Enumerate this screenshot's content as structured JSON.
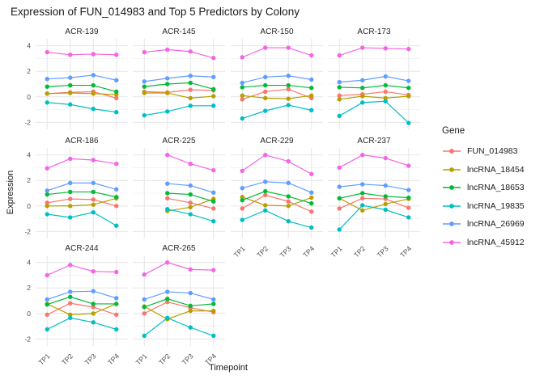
{
  "title": "Expression of FUN_014983 and Top 5 Predictors by Colony",
  "axes": {
    "x_title": "Timepoint",
    "y_title": "Expression"
  },
  "legend": {
    "title": "Gene",
    "items": [
      {
        "label": "FUN_014983",
        "color": "#F8766D"
      },
      {
        "label": "lncRNA_18454",
        "color": "#B79F00"
      },
      {
        "label": "lncRNA_18653",
        "color": "#00BA38"
      },
      {
        "label": "lncRNA_19835",
        "color": "#00BFC4"
      },
      {
        "label": "lncRNA_26969",
        "color": "#619CFF"
      },
      {
        "label": "lncRNA_45912",
        "color": "#F564E3"
      }
    ]
  },
  "chart_data": {
    "type": "line",
    "facet_by": "Colony",
    "x": [
      "TP1",
      "TP2",
      "TP3",
      "TP4"
    ],
    "xlabel": "Timepoint",
    "ylabel": "Expression",
    "ylim": [
      -2.55,
      4.55
    ],
    "y_major_ticks": [
      4,
      2,
      0,
      -2
    ],
    "y_minor_gridlines": [
      3,
      1,
      -1
    ],
    "grid": true,
    "legend_position": "right",
    "facets": [
      {
        "name": "ACR-139",
        "show_x_labels": false,
        "series": {
          "FUN_014983": [
            0.25,
            0.35,
            0.4,
            -0.1
          ],
          "lncRNA_18454": [
            0.25,
            0.3,
            0.25,
            0.17
          ],
          "lncRNA_18653": [
            0.8,
            0.9,
            0.9,
            0.4
          ],
          "lncRNA_19835": [
            -0.45,
            -0.6,
            -0.95,
            -1.2
          ],
          "lncRNA_26969": [
            1.4,
            1.5,
            1.7,
            1.3
          ],
          "lncRNA_45912": [
            3.5,
            3.3,
            3.35,
            3.3
          ]
        }
      },
      {
        "name": "ACR-145",
        "show_x_labels": false,
        "series": {
          "FUN_014983": [
            0.4,
            0.35,
            0.55,
            0.5
          ],
          "lncRNA_18454": [
            0.3,
            0.3,
            -0.1,
            0.05
          ],
          "lncRNA_18653": [
            0.8,
            1.0,
            1.1,
            0.6
          ],
          "lncRNA_19835": [
            -1.45,
            -1.15,
            -0.7,
            -0.7
          ],
          "lncRNA_26969": [
            1.2,
            1.45,
            1.65,
            1.55
          ],
          "lncRNA_45912": [
            3.5,
            3.7,
            3.55,
            3.05
          ]
        }
      },
      {
        "name": "ACR-150",
        "show_x_labels": false,
        "series": {
          "FUN_014983": [
            -0.2,
            0.4,
            0.6,
            -0.1
          ],
          "lncRNA_18454": [
            0.1,
            -0.1,
            -0.15,
            0.1
          ],
          "lncRNA_18653": [
            0.75,
            0.9,
            0.9,
            0.7
          ],
          "lncRNA_19835": [
            -1.7,
            -1.1,
            -0.65,
            -1.05
          ],
          "lncRNA_26969": [
            1.1,
            1.55,
            1.65,
            1.35
          ],
          "lncRNA_45912": [
            3.1,
            3.85,
            3.85,
            3.25
          ]
        }
      },
      {
        "name": "ACR-173",
        "show_x_labels": false,
        "series": {
          "FUN_014983": [
            0.1,
            0.2,
            0.4,
            0.15
          ],
          "lncRNA_18454": [
            -0.2,
            0.05,
            -0.1,
            0.05
          ],
          "lncRNA_18653": [
            0.75,
            0.7,
            0.9,
            0.7
          ],
          "lncRNA_19835": [
            -1.5,
            -0.45,
            -0.35,
            -2.05
          ],
          "lncRNA_26969": [
            1.15,
            1.3,
            1.6,
            1.25
          ],
          "lncRNA_45912": [
            3.25,
            3.85,
            3.8,
            3.75
          ]
        }
      },
      {
        "name": "ACR-186",
        "show_x_labels": false,
        "series": {
          "FUN_014983": [
            0.25,
            0.55,
            0.5,
            0.0
          ],
          "lncRNA_18454": [
            0.0,
            0.0,
            0.1,
            0.6
          ],
          "lncRNA_18653": [
            0.9,
            1.1,
            1.1,
            0.7
          ],
          "lncRNA_19835": [
            -0.65,
            -0.9,
            -0.5,
            -1.55
          ],
          "lncRNA_26969": [
            1.2,
            1.8,
            1.8,
            1.3
          ],
          "lncRNA_45912": [
            2.95,
            3.7,
            3.6,
            3.3
          ]
        }
      },
      {
        "name": "ACR-225",
        "show_x_labels": false,
        "series": {
          "FUN_014983": [
            null,
            0.6,
            0.25,
            -0.2
          ],
          "lncRNA_18454": [
            null,
            -0.4,
            -0.1,
            0.55
          ],
          "lncRNA_18653": [
            null,
            1.0,
            0.9,
            0.35
          ],
          "lncRNA_19835": [
            null,
            -0.25,
            -0.65,
            -1.2
          ],
          "lncRNA_26969": [
            null,
            1.75,
            1.6,
            1.05
          ],
          "lncRNA_45912": [
            null,
            4.0,
            3.3,
            2.8
          ]
        }
      },
      {
        "name": "ACR-229",
        "show_x_labels": true,
        "series": {
          "FUN_014983": [
            -0.2,
            0.85,
            0.35,
            -0.45
          ],
          "lncRNA_18454": [
            0.7,
            0.05,
            0.0,
            0.65
          ],
          "lncRNA_18653": [
            0.45,
            1.15,
            0.75,
            0.2
          ],
          "lncRNA_19835": [
            -1.1,
            -0.35,
            -1.2,
            -1.7
          ],
          "lncRNA_26969": [
            1.4,
            1.9,
            1.8,
            1.05
          ],
          "lncRNA_45912": [
            2.75,
            4.0,
            3.5,
            2.5
          ]
        }
      },
      {
        "name": "ACR-237",
        "show_x_labels": true,
        "series": {
          "FUN_014983": [
            -0.2,
            0.6,
            0.55,
            -0.15
          ],
          "lncRNA_18454": [
            0.6,
            -0.35,
            0.15,
            0.55
          ],
          "lncRNA_18653": [
            0.6,
            1.0,
            0.75,
            0.65
          ],
          "lncRNA_19835": [
            -1.85,
            0.05,
            -0.3,
            -0.9
          ],
          "lncRNA_26969": [
            1.5,
            1.7,
            1.6,
            1.25
          ],
          "lncRNA_45912": [
            3.0,
            4.0,
            3.75,
            3.15
          ]
        }
      },
      {
        "name": "ACR-244",
        "show_x_labels": true,
        "series": {
          "FUN_014983": [
            -0.1,
            0.8,
            0.5,
            -0.1
          ],
          "lncRNA_18454": [
            0.75,
            -0.1,
            0.0,
            0.75
          ],
          "lncRNA_18653": [
            0.7,
            1.3,
            0.75,
            0.75
          ],
          "lncRNA_19835": [
            -1.25,
            -0.35,
            -0.7,
            -1.25
          ],
          "lncRNA_26969": [
            1.1,
            1.7,
            1.75,
            1.2
          ],
          "lncRNA_45912": [
            3.0,
            3.8,
            3.3,
            3.25
          ]
        }
      },
      {
        "name": "ACR-265",
        "show_x_labels": true,
        "series": {
          "FUN_014983": [
            0.0,
            0.9,
            0.45,
            0.1
          ],
          "lncRNA_18454": [
            0.55,
            -0.45,
            0.2,
            0.2
          ],
          "lncRNA_18653": [
            0.5,
            1.15,
            0.6,
            0.75
          ],
          "lncRNA_19835": [
            -1.75,
            -0.35,
            -1.1,
            -1.75
          ],
          "lncRNA_26969": [
            1.1,
            1.7,
            1.6,
            1.1
          ],
          "lncRNA_45912": [
            3.05,
            4.0,
            3.45,
            3.4
          ]
        }
      }
    ]
  }
}
